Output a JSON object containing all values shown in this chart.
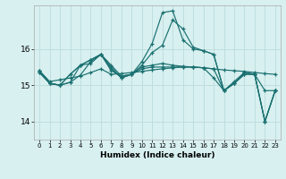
{
  "xlabel": "Humidex (Indice chaleur)",
  "bg_color": "#d8f0f0",
  "grid_color": "#c0dede",
  "line_color": "#1a7070",
  "xlim": [
    -0.5,
    23.5
  ],
  "ylim": [
    13.5,
    17.2
  ],
  "yticks": [
    14,
    15,
    16
  ],
  "xtick_labels": [
    "0",
    "1",
    "2",
    "3",
    "4",
    "5",
    "6",
    "7",
    "8",
    "9",
    "10",
    "11",
    "12",
    "13",
    "14",
    "15",
    "16",
    "17",
    "18",
    "19",
    "20",
    "21",
    "22",
    "23"
  ],
  "series": [
    [
      15.4,
      15.1,
      15.15,
      15.2,
      15.25,
      15.35,
      15.45,
      15.3,
      15.32,
      15.35,
      15.38,
      15.42,
      15.45,
      15.48,
      15.5,
      15.5,
      15.48,
      15.45,
      15.42,
      15.4,
      15.38,
      15.35,
      15.32,
      15.3
    ],
    [
      15.35,
      15.05,
      15.0,
      15.08,
      15.55,
      15.6,
      15.85,
      15.45,
      15.2,
      15.3,
      15.45,
      15.5,
      15.5,
      15.5,
      15.5,
      15.5,
      15.48,
      15.2,
      14.85,
      15.05,
      15.3,
      15.3,
      14.85,
      14.85
    ],
    [
      15.35,
      15.05,
      15.0,
      15.08,
      15.28,
      15.65,
      15.85,
      15.5,
      15.2,
      15.3,
      15.5,
      15.55,
      15.6,
      15.55,
      15.52,
      15.5,
      15.48,
      15.45,
      14.85,
      15.05,
      15.3,
      15.3,
      14.0,
      14.85
    ],
    [
      15.4,
      15.05,
      15.0,
      15.3,
      15.55,
      15.7,
      15.85,
      15.55,
      15.25,
      15.3,
      15.55,
      15.9,
      16.1,
      16.8,
      16.55,
      16.05,
      15.95,
      15.85,
      14.85,
      15.05,
      15.35,
      15.3,
      14.0,
      14.85
    ],
    [
      15.4,
      15.05,
      15.0,
      15.3,
      15.55,
      15.7,
      15.85,
      15.4,
      15.25,
      15.3,
      15.65,
      16.15,
      17.0,
      17.05,
      16.25,
      16.0,
      15.95,
      15.85,
      14.85,
      15.1,
      15.35,
      15.3,
      14.0,
      14.85
    ]
  ]
}
